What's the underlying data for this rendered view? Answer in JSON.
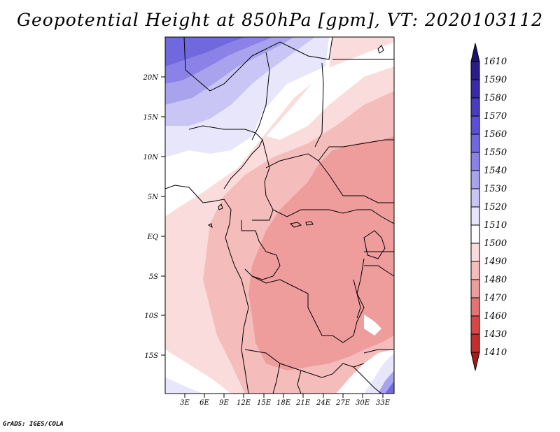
{
  "map": {
    "title": "Geopotential Height at 850hPa [gpm], VT: 2020103112",
    "credit": "GrADS: IGES/COLA",
    "lat_labels": [
      "20N",
      "15N",
      "10N",
      "5N",
      "EQ",
      "5S",
      "10S",
      "15S"
    ],
    "lon_labels": [
      "3E",
      "6E",
      "9E",
      "12E",
      "15E",
      "18E",
      "21E",
      "24E",
      "27E",
      "30E",
      "33E"
    ],
    "extent": {
      "lon_range": [
        0,
        34.5
      ],
      "lat_range": [
        -19.5,
        24.5
      ]
    }
  },
  "legend": {
    "levels": [
      "1610",
      "1590",
      "1580",
      "1570",
      "1560",
      "1550",
      "1540",
      "1530",
      "1520",
      "1510",
      "1500",
      "1490",
      "1480",
      "1470",
      "1460",
      "1430",
      "1410"
    ],
    "colors": [
      "#1c1270",
      "#2a1c8a",
      "#3a2aa8",
      "#4a3cc0",
      "#5b4fd2",
      "#7068de",
      "#8a82e6",
      "#a9a3ee",
      "#c9c6f6",
      "#e7e6fb",
      "#ffffff",
      "#fbdcdc",
      "#f5bcbc",
      "#ee9c9c",
      "#e47474",
      "#d64848",
      "#c22e2e",
      "#a41c1c"
    ]
  }
}
